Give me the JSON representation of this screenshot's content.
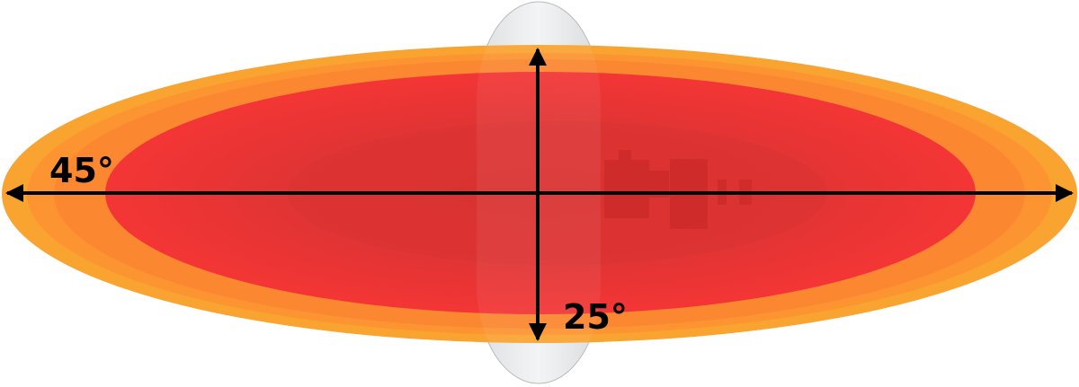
{
  "diagram": {
    "horizontal_angle_label": "45°",
    "vertical_angle_label": "25°",
    "colors": {
      "outer_beam": "#f9a431",
      "mid_beam": "#fb8a30",
      "inner_beam": "#f63535",
      "core_beam": "#db3232",
      "reflector": "#e8e9ec",
      "arrows": "#000000"
    }
  }
}
